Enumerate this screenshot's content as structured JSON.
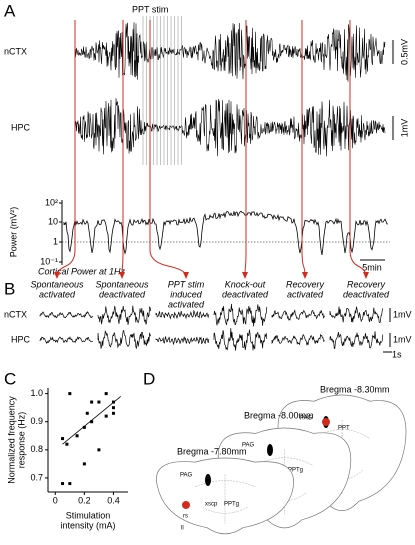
{
  "figure": {
    "panel_a": {
      "label": "A",
      "stim_label": "PPT stim",
      "rows": [
        {
          "name": "nCTX",
          "scale": "0.5mV"
        },
        {
          "name": "HPC",
          "scale": "1mV"
        }
      ],
      "power": {
        "ylabel": "Power (mV²)",
        "ticks": [
          "10²",
          "10",
          "1",
          "10⁻¹"
        ],
        "annotation": "Cortical Power at 1Hz",
        "scale_bar": "5min"
      }
    },
    "panel_b": {
      "label": "B",
      "states": [
        [
          "Spontaneous",
          "activated"
        ],
        [
          "Spontaneous",
          "deactivated"
        ],
        [
          "PPT stim",
          "induced",
          "activated"
        ],
        [
          "Knock-out",
          "deactivated"
        ],
        [
          "Recovery",
          "activated"
        ],
        [
          "Recovery",
          "deactivated"
        ]
      ],
      "rows": [
        {
          "name": "nCTX",
          "scale": "1mV"
        },
        {
          "name": "HPC",
          "scale": "1mV"
        }
      ],
      "time_scale": "1s"
    },
    "panel_c": {
      "label": "C"
    },
    "panel_d": {
      "label": "D",
      "sections": [
        {
          "title": "Bregma -8.30mm",
          "labels": [
            "PAG",
            "PPT",
            "fs"
          ]
        },
        {
          "title": "Bregma -8.00mm",
          "labels": [
            "PAG",
            "xscp",
            "PPTg",
            "rs",
            "ll"
          ]
        },
        {
          "title": "Bregma -7.80mm",
          "labels": [
            "PAG",
            "xscp",
            "PPTg",
            "rs",
            "ll"
          ]
        }
      ]
    }
  },
  "chart_data": {
    "type": "scatter",
    "xlabel": [
      "Stimulation",
      "intensity (mA)"
    ],
    "ylabel": [
      "Normalized frequency",
      "response (Hz)"
    ],
    "x": [
      0.05,
      0.1,
      0.05,
      0.08,
      0.1,
      0.15,
      0.2,
      0.2,
      0.22,
      0.25,
      0.25,
      0.3,
      0.3,
      0.35,
      0.35,
      0.4,
      0.4,
      0.4
    ],
    "values": [
      0.68,
      0.68,
      0.84,
      0.82,
      1.0,
      0.85,
      0.75,
      0.88,
      0.93,
      0.97,
      0.9,
      0.8,
      0.97,
      0.92,
      1.0,
      0.95,
      0.97,
      0.93
    ],
    "trend_line": {
      "x": [
        0.05,
        0.45
      ],
      "y": [
        0.82,
        0.99
      ]
    },
    "color": "#000000",
    "xlim": [
      -0.05,
      0.5
    ],
    "ylim": [
      0.65,
      1.02
    ],
    "xticks": [
      0,
      0.2,
      0.4
    ],
    "yticks": [
      0.7,
      0.8,
      0.9,
      {
        "value": 1,
        "label": "1.0"
      }
    ]
  }
}
